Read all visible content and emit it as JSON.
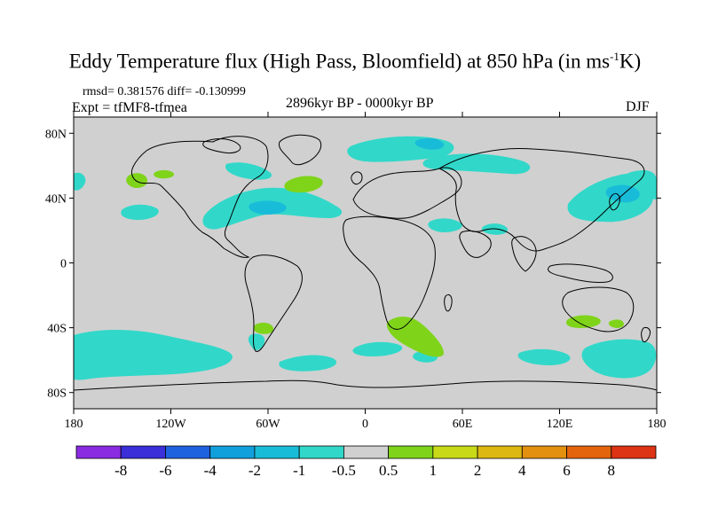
{
  "title": {
    "main": "Eddy Temperature flux (High Pass, Bloomfield) at 850 hPa (in ms",
    "sup": "-1",
    "tail": "K)"
  },
  "stats": "rmsd= 0.381576 diff= -0.130999",
  "experiment": "Expt = tfMF8-tfmea",
  "period": "2896kyr BP - 0000kyr BP",
  "season": "DJF",
  "map": {
    "lon_range": [
      -180,
      180
    ],
    "lat_range": [
      -90,
      90
    ],
    "background_color": "#d0d0d0",
    "lat_ticks": [
      {
        "lat": 80,
        "label": "80N"
      },
      {
        "lat": 40,
        "label": "40N"
      },
      {
        "lat": 0,
        "label": "0"
      },
      {
        "lat": -40,
        "label": "40S"
      },
      {
        "lat": -80,
        "label": "80S"
      }
    ],
    "lon_ticks": [
      {
        "lon": -180,
        "label": "180"
      },
      {
        "lon": -120,
        "label": "120W"
      },
      {
        "lon": -60,
        "label": "60W"
      },
      {
        "lon": 0,
        "label": "0"
      },
      {
        "lon": 60,
        "label": "60E"
      },
      {
        "lon": 120,
        "label": "120E"
      },
      {
        "lon": 180,
        "label": "180"
      }
    ]
  },
  "colorbar": {
    "colors": [
      "#8a2be2",
      "#3a2fd8",
      "#1f62df",
      "#12a0dd",
      "#19bcd8",
      "#31d8c9",
      "#d0d0d0",
      "#7fd41a",
      "#c8da17",
      "#dcb811",
      "#e2900e",
      "#e4640d",
      "#dc3414"
    ],
    "labels": [
      "-8",
      "-6",
      "-4",
      "-2",
      "-1",
      "-0.5",
      "0.5",
      "1",
      "2",
      "4",
      "6",
      "8"
    ]
  }
}
